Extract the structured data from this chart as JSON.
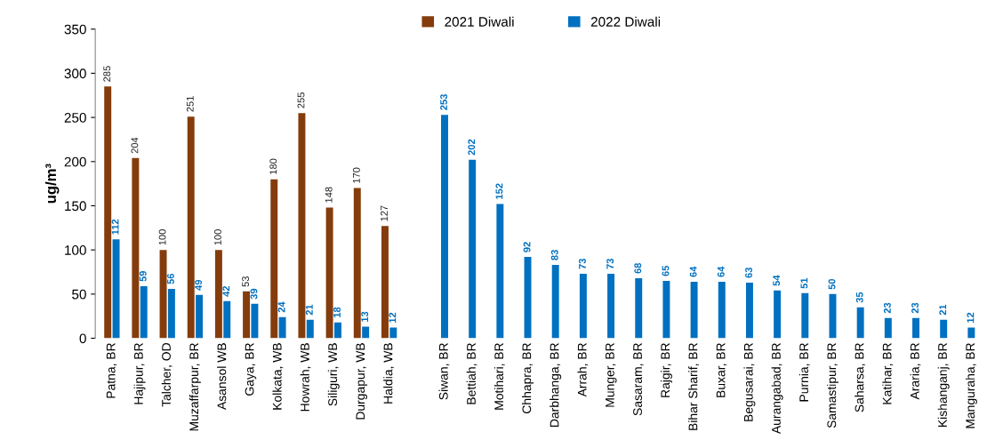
{
  "chart_data": {
    "type": "bar",
    "ylabel": "ug/m³",
    "categories": [
      "Patna, BR",
      "Hajipur, BR",
      "Talcher, OD",
      "Muzaffarpur, BR",
      "Asansol WB",
      "Gaya, BR",
      "Kolkata, WB",
      "Howrah, WB",
      "Siliguri, WB",
      "Durgapur, WB",
      "Haldia, WB",
      null,
      "Siwan, BR",
      "Bettiah, BR",
      "Motihari, BR",
      "Chhapra, BR",
      "Darbhanga, BR",
      "Arrah, BR",
      "Munger, BR",
      "Sasaram, BR",
      "Rajgir, BR",
      "Bihar Sharif, BR",
      "Buxar, BR",
      "Begusarai, BR",
      "Aurangabad, BR",
      "Purnia, BR",
      "Samastipur, BR",
      "Saharsa, BR",
      "Katihar, BR",
      "Araria, BR",
      "Kishanganj, BR",
      "Manguraha, BR"
    ],
    "series": [
      {
        "name": "2021 Diwali",
        "color": "#843c0c",
        "values": [
          285,
          204,
          100,
          251,
          100,
          53,
          180,
          255,
          148,
          170,
          127,
          null,
          null,
          null,
          null,
          null,
          null,
          null,
          null,
          null,
          null,
          null,
          null,
          null,
          null,
          null,
          null,
          null,
          null,
          null,
          null,
          null
        ]
      },
      {
        "name": "2022 Diwali",
        "color": "#0070c0",
        "values": [
          112,
          59,
          56,
          49,
          42,
          39,
          24,
          21,
          18,
          13,
          12,
          null,
          253,
          202,
          152,
          92,
          83,
          73,
          73,
          68,
          65,
          64,
          64,
          63,
          54,
          51,
          50,
          35,
          23,
          23,
          21,
          12
        ]
      }
    ],
    "ylim": [
      0,
      350
    ],
    "yticks": [
      0,
      50,
      100,
      150,
      200,
      250,
      300,
      350
    ],
    "data_labels": true,
    "legend": "top",
    "grid": false
  }
}
